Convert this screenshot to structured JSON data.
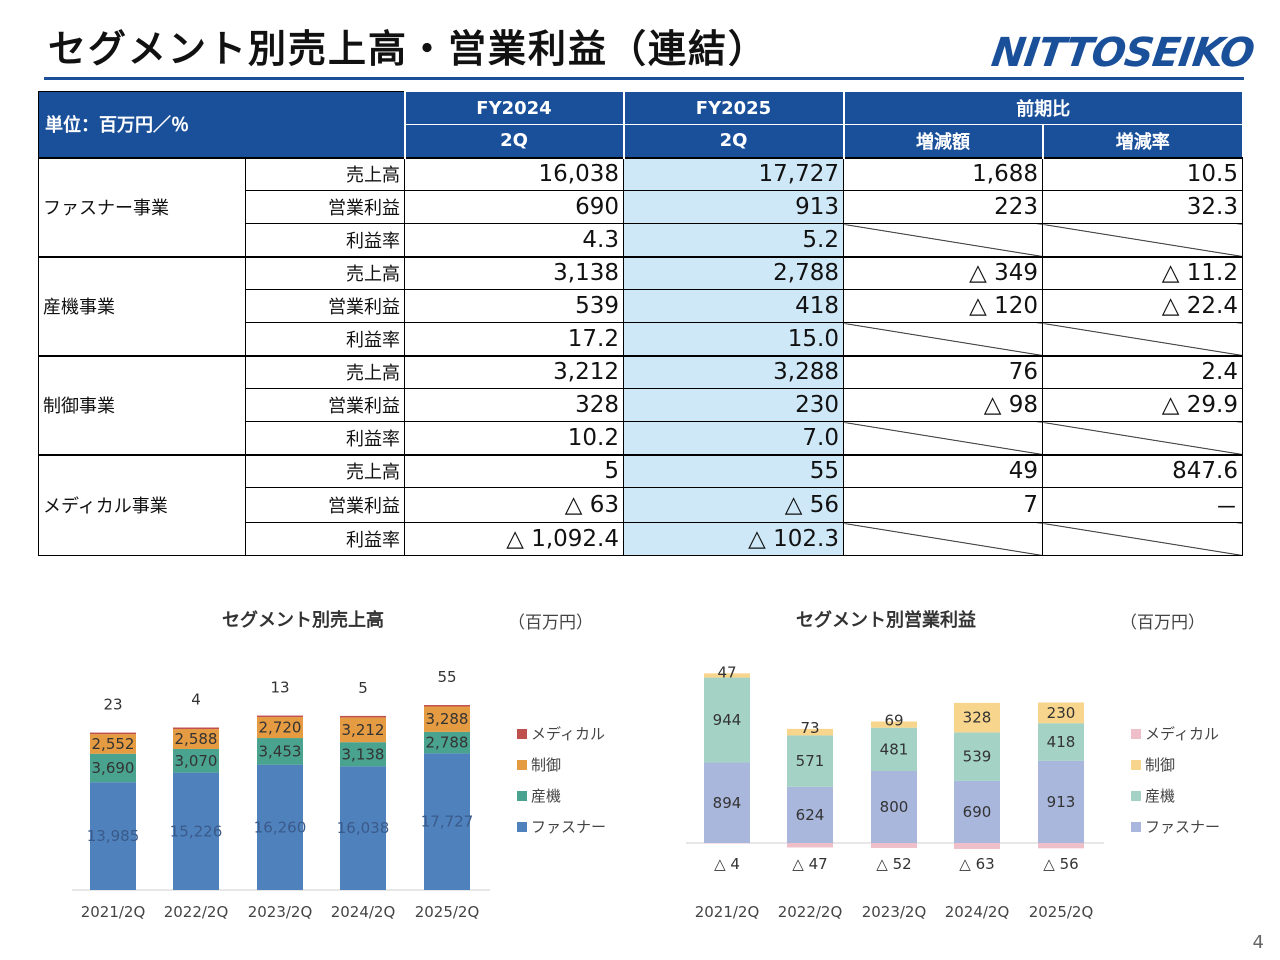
{
  "page": {
    "title": "セグメント別売上高・営業利益（連結）",
    "logo": "NITTOSEIKO",
    "page_number": "4"
  },
  "table": {
    "unit": "単位：百万円／％",
    "fy2024_top": "FY2024",
    "fy2024_bottom": "2Q",
    "fy2025_top": "FY2025",
    "fy2025_bottom": "2Q",
    "yoy": "前期比",
    "diff": "増減額",
    "rate": "増減率",
    "groups": [
      {
        "name": "ファスナー事業",
        "rows": [
          {
            "metric": "売上高",
            "fy2024": "16,038",
            "fy2025": "17,727",
            "diff": "1,688",
            "rate": "10.5"
          },
          {
            "metric": "営業利益",
            "fy2024": "690",
            "fy2025": "913",
            "diff": "223",
            "rate": "32.3"
          },
          {
            "metric": "利益率",
            "fy2024": "4.3",
            "fy2025": "5.2",
            "diff": null,
            "rate": null
          }
        ]
      },
      {
        "name": "産機事業",
        "rows": [
          {
            "metric": "売上高",
            "fy2024": "3,138",
            "fy2025": "2,788",
            "diff": "△ 349",
            "rate": "△ 11.2"
          },
          {
            "metric": "営業利益",
            "fy2024": "539",
            "fy2025": "418",
            "diff": "△ 120",
            "rate": "△ 22.4"
          },
          {
            "metric": "利益率",
            "fy2024": "17.2",
            "fy2025": "15.0",
            "diff": null,
            "rate": null
          }
        ]
      },
      {
        "name": "制御事業",
        "rows": [
          {
            "metric": "売上高",
            "fy2024": "3,212",
            "fy2025": "3,288",
            "diff": "76",
            "rate": "2.4"
          },
          {
            "metric": "営業利益",
            "fy2024": "328",
            "fy2025": "230",
            "diff": "△ 98",
            "rate": "△ 29.9"
          },
          {
            "metric": "利益率",
            "fy2024": "10.2",
            "fy2025": "7.0",
            "diff": null,
            "rate": null
          }
        ]
      },
      {
        "name": "メディカル事業",
        "rows": [
          {
            "metric": "売上高",
            "fy2024": "5",
            "fy2025": "55",
            "diff": "49",
            "rate": "847.6"
          },
          {
            "metric": "営業利益",
            "fy2024": "△ 63",
            "fy2025": "△ 56",
            "diff": "7",
            "rate": "－"
          },
          {
            "metric": "利益率",
            "fy2024": "△ 1,092.4",
            "fy2025": "△ 102.3",
            "diff": null,
            "rate": null
          }
        ]
      }
    ]
  },
  "chart_data": [
    {
      "type": "bar",
      "stacked": true,
      "title": "セグメント別売上高",
      "unit": "（百万円）",
      "categories": [
        "2021/2Q",
        "2022/2Q",
        "2023/2Q",
        "2024/2Q",
        "2025/2Q"
      ],
      "series": [
        {
          "name": "ファスナー",
          "color": "#4f81bd",
          "values": [
            13985,
            15226,
            16260,
            16038,
            17727
          ]
        },
        {
          "name": "産機",
          "color": "#4aa38f",
          "values": [
            3690,
            3070,
            3453,
            3138,
            2788
          ]
        },
        {
          "name": "制御",
          "color": "#e59b42",
          "values": [
            2552,
            2588,
            2720,
            3212,
            3288
          ]
        },
        {
          "name": "メディカル",
          "color": "#c0504d",
          "values": [
            23,
            4,
            13,
            5,
            55
          ]
        }
      ],
      "legend_position": "right",
      "legend_order": [
        "メディカル",
        "制御",
        "産機",
        "ファスナー"
      ]
    },
    {
      "type": "bar",
      "stacked": true,
      "title": "セグメント別営業利益",
      "unit": "（百万円）",
      "categories": [
        "2021/2Q",
        "2022/2Q",
        "2023/2Q",
        "2024/2Q",
        "2025/2Q"
      ],
      "series": [
        {
          "name": "ファスナー",
          "color": "#aab7dd",
          "values": [
            894,
            624,
            800,
            690,
            913
          ]
        },
        {
          "name": "産機",
          "color": "#a4d3c6",
          "values": [
            944,
            571,
            481,
            539,
            418
          ]
        },
        {
          "name": "制御",
          "color": "#f7d58c",
          "values": [
            47,
            73,
            69,
            328,
            230
          ]
        },
        {
          "name": "メディカル",
          "color": "#eebfc9",
          "values": [
            -4,
            -47,
            -52,
            -63,
            -56
          ]
        }
      ],
      "negative_labels": [
        "△ 4",
        "△ 47",
        "△ 52",
        "△ 63",
        "△ 56"
      ],
      "legend_position": "right",
      "legend_order": [
        "メディカル",
        "制御",
        "産機",
        "ファスナー"
      ]
    }
  ]
}
